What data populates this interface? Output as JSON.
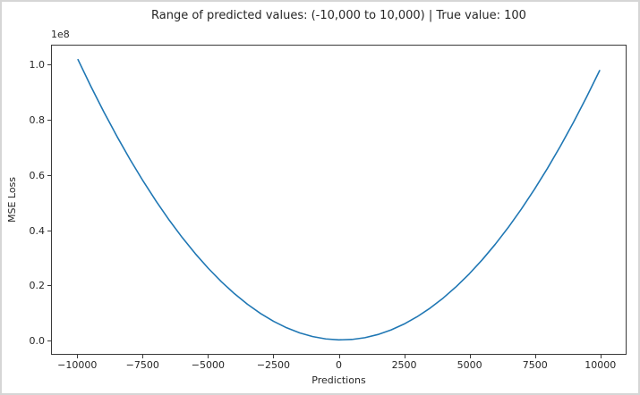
{
  "figure": {
    "background": "#ffffff",
    "edge_border_color": "#d6d6d6"
  },
  "chart_data": {
    "type": "line",
    "title": "Range of predicted values: (-10,000 to 10,000) | True value: 100",
    "xlabel": "Predictions",
    "ylabel": "MSE Loss",
    "y_offset_label": "1e8",
    "true_value": 100,
    "grid": false,
    "legend": null,
    "line_color": "#1f77b4",
    "axis_color": "#3a3a3a",
    "text_color": "#262626",
    "xlim": [
      -11000,
      11000
    ],
    "ylim": [
      -5090000,
      107110000
    ],
    "xticks": [
      -10000,
      -7500,
      -5000,
      -2500,
      0,
      2500,
      5000,
      7500,
      10000
    ],
    "xtick_labels": [
      "−10000",
      "−7500",
      "−5000",
      "−2500",
      "0",
      "2500",
      "5000",
      "7500",
      "10000"
    ],
    "yticks": [
      0,
      20000000,
      40000000,
      60000000,
      80000000,
      100000000
    ],
    "ytick_labels": [
      "0.0",
      "0.2",
      "0.4",
      "0.6",
      "0.8",
      "1.0"
    ],
    "series": [
      {
        "name": "MSE Loss",
        "x": [
          -10000,
          -9500,
          -9000,
          -8500,
          -8000,
          -7500,
          -7000,
          -6500,
          -6000,
          -5500,
          -5000,
          -4500,
          -4000,
          -3500,
          -3000,
          -2500,
          -2000,
          -1500,
          -1000,
          -500,
          0,
          500,
          1000,
          1500,
          2000,
          2500,
          3000,
          3500,
          4000,
          4500,
          5000,
          5500,
          6000,
          6500,
          7000,
          7500,
          8000,
          8500,
          9000,
          9500,
          10000
        ],
        "y": [
          102010000,
          92160000,
          82810000,
          73960000,
          65610000,
          57760000,
          50410000,
          43560000,
          37210000,
          31360000,
          26010000,
          21160000,
          16810000,
          12960000,
          9610000,
          6760000,
          4410000,
          2560000,
          1210000,
          360000,
          10000,
          160000,
          810000,
          1960000,
          3610000,
          5760000,
          8410000,
          11560000,
          15210000,
          19360000,
          24010000,
          29160000,
          34810000,
          40960000,
          47610000,
          54760000,
          62410000,
          70560000,
          79210000,
          88360000,
          98010000
        ]
      }
    ]
  }
}
